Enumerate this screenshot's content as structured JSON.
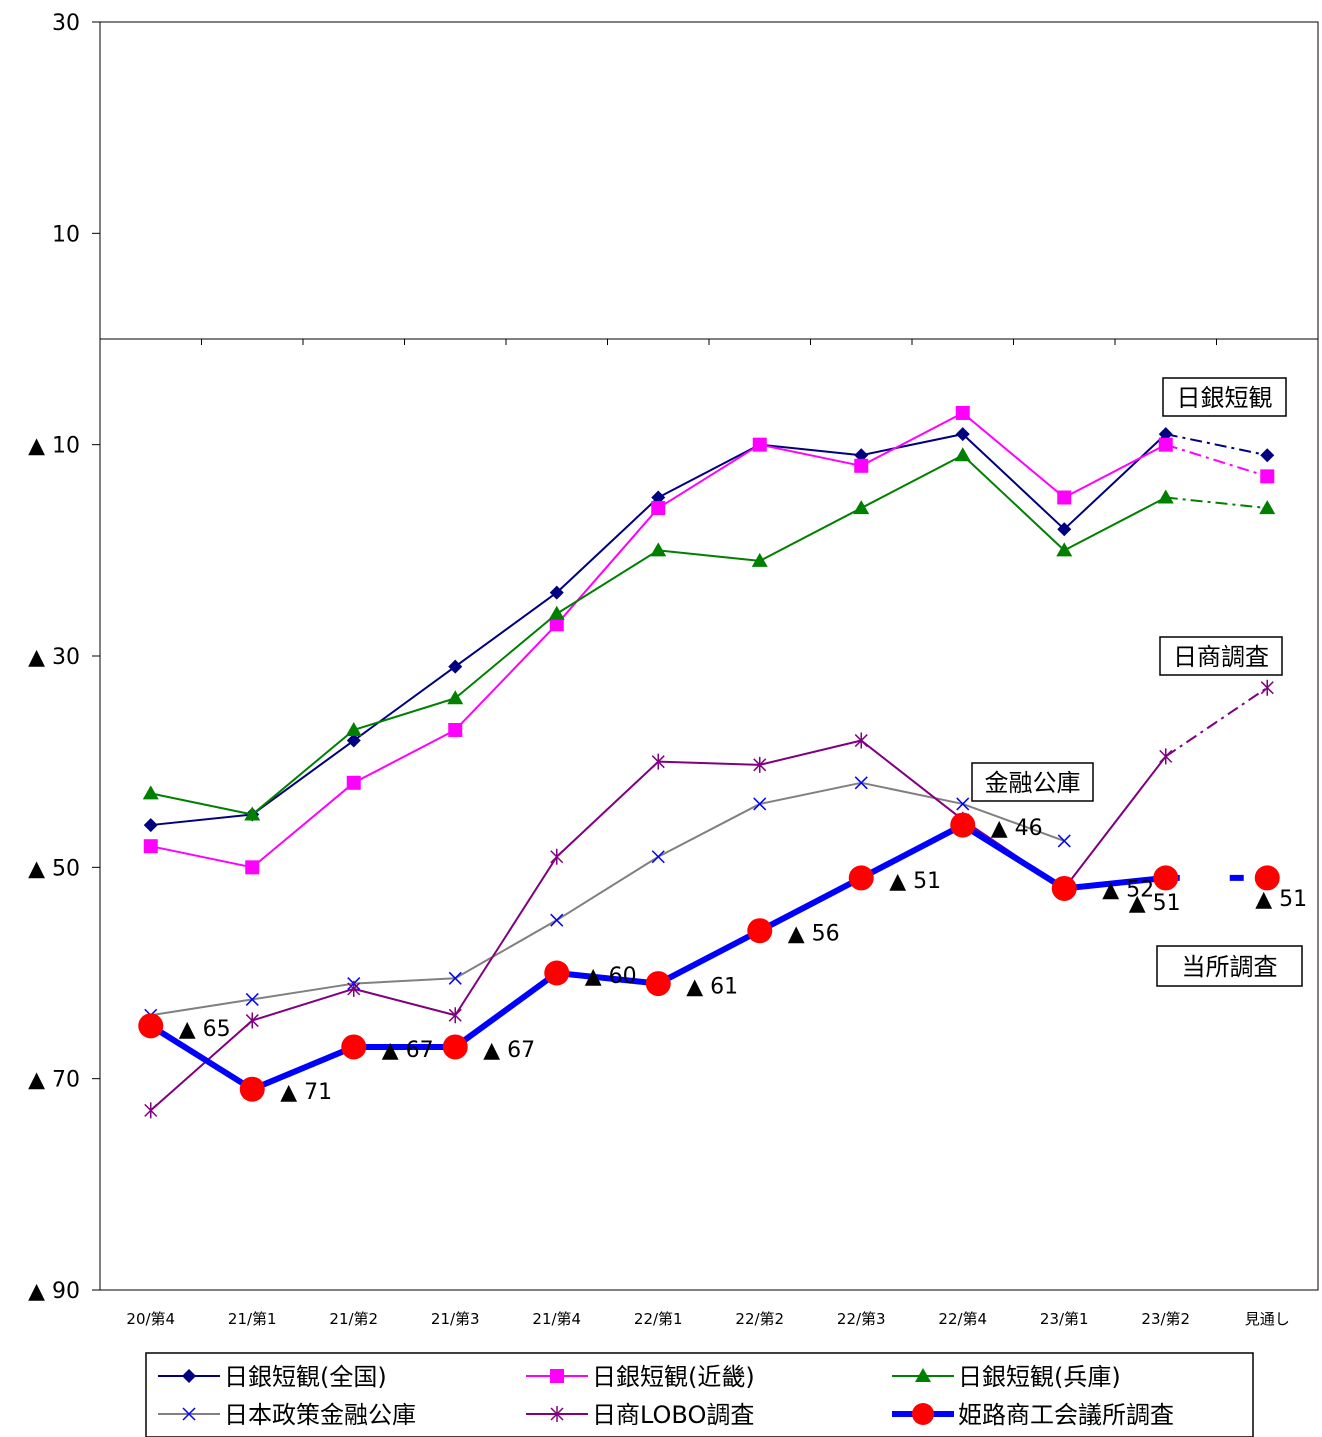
{
  "chart_data": {
    "type": "line",
    "categories": [
      "20/第4",
      "21/第1",
      "21/第2",
      "21/第3",
      "21/第4",
      "22/第1",
      "22/第2",
      "22/第3",
      "22/第4",
      "23/第1",
      "23/第2",
      "見通し"
    ],
    "ylim": [
      -90,
      30
    ],
    "y_ticks": [
      {
        "value": 30,
        "label": "30"
      },
      {
        "value": 10,
        "label": "10"
      },
      {
        "value": -10,
        "label": "▲ 10"
      },
      {
        "value": -30,
        "label": "▲ 30"
      },
      {
        "value": -50,
        "label": "▲ 50"
      },
      {
        "value": -70,
        "label": "▲ 70"
      },
      {
        "value": -90,
        "label": "▲ 90"
      }
    ],
    "grid": false,
    "legend_position": "bottom",
    "series": [
      {
        "name": "日銀短観(全国)",
        "color": "#000080",
        "marker": "diamond",
        "width": 2,
        "values": [
          -46,
          -45,
          -38,
          -31,
          -24,
          -15,
          -10,
          -11,
          -9,
          -18,
          -9,
          -11
        ],
        "forecast_from": 10
      },
      {
        "name": "日銀短観(近畿)",
        "color": "#ff00ff",
        "marker": "square",
        "width": 2,
        "values": [
          -48,
          -50,
          -42,
          -37,
          -27,
          -16,
          -10,
          -12,
          -7,
          -15,
          -10,
          -13
        ],
        "forecast_from": 10
      },
      {
        "name": "日銀短観(兵庫)",
        "color": "#008000",
        "marker": "triangle",
        "width": 2,
        "values": [
          -43,
          -45,
          -37,
          -34,
          -26,
          -20,
          -21,
          -16,
          -11,
          -20,
          -15,
          -16
        ],
        "forecast_from": 10
      },
      {
        "name": "日本政策金融公庫",
        "color": "#808080",
        "marker": "x",
        "marker_color": "#0000ff",
        "width": 2,
        "values": [
          -64,
          -62.5,
          -61,
          -60.5,
          -55,
          -49,
          -44,
          -42,
          -44,
          -47.5,
          null,
          null
        ]
      },
      {
        "name": "日商LOBO調査",
        "color": "#800080",
        "marker": "star",
        "width": 2,
        "values": [
          -73,
          -64.5,
          -61.5,
          -64,
          -49,
          -40,
          -40.3,
          -38,
          -45.5,
          -52,
          -39.5,
          -33
        ],
        "forecast_from": 10
      },
      {
        "name": "姫路商工会議所調査",
        "color": "#0000ff",
        "marker": "circle",
        "marker_color": "#ff0000",
        "width": 6,
        "values": [
          -65,
          -71,
          -67,
          -67,
          -60,
          -61,
          -56,
          -51,
          -46,
          -52,
          -51,
          -51
        ],
        "forecast_from": 10
      }
    ],
    "data_labels": [
      {
        "text": "▲ 65",
        "x_index": 0,
        "value": -65
      },
      {
        "text": "▲ 71",
        "x_index": 1,
        "value": -71
      },
      {
        "text": "▲ 67",
        "x_index": 2,
        "value": -67
      },
      {
        "text": "▲ 67",
        "x_index": 3,
        "value": -67
      },
      {
        "text": "▲ 60",
        "x_index": 4,
        "value": -60
      },
      {
        "text": "▲ 61",
        "x_index": 5,
        "value": -61
      },
      {
        "text": "▲ 56",
        "x_index": 6,
        "value": -56
      },
      {
        "text": "▲ 51",
        "x_index": 7,
        "value": -51
      },
      {
        "text": "▲ 46",
        "x_index": 8,
        "value": -46
      },
      {
        "text": "▲ 52",
        "x_index": 9,
        "value": -52
      },
      {
        "text": "▲ 51",
        "x_index": 10,
        "value": -51
      },
      {
        "text": "▲ 51",
        "x_index": 11,
        "value": -51
      }
    ],
    "annotations": [
      "日銀短観",
      "日商調査",
      "金融公庫",
      "当所調査"
    ]
  }
}
